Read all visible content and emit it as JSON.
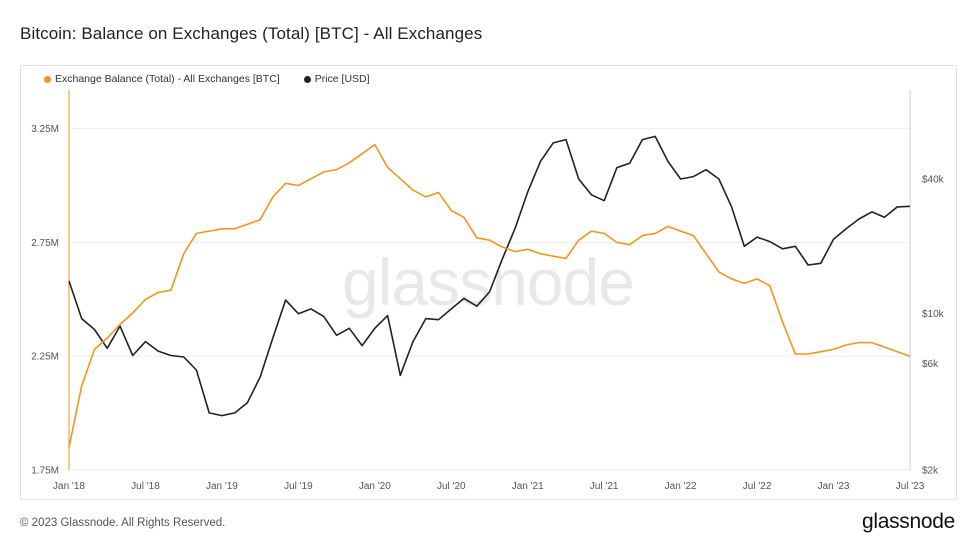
{
  "header": {
    "title": "Bitcoin: Balance on Exchanges (Total) [BTC] - All Exchanges"
  },
  "footer": {
    "copyright": "© 2023 Glassnode. All Rights Reserved.",
    "brand": "glassnode"
  },
  "watermark": "glassnode",
  "colors": {
    "balance": "#f0961c",
    "price": "#222222",
    "grid": "#eeeeee"
  },
  "chart_data": {
    "type": "line",
    "title": "Bitcoin: Balance on Exchanges (Total) [BTC] - All Exchanges",
    "legend_position": "top-left",
    "grid": true,
    "x_ticks": [
      "Jan '18",
      "Jul '18",
      "Jan '19",
      "Jul '19",
      "Jan '20",
      "Jul '20",
      "Jan '21",
      "Jul '21",
      "Jan '22",
      "Jul '22",
      "Jan '23",
      "Jul '23"
    ],
    "x_range": [
      "2018-01",
      "2023-07"
    ],
    "left_axis": {
      "ticks": [
        "1.75M",
        "2.25M",
        "2.75M",
        "3.25M"
      ],
      "values": [
        1750000,
        2250000,
        2750000,
        3250000
      ],
      "range": [
        1750000,
        3420000
      ]
    },
    "right_axis": {
      "scale": "log",
      "ticks": [
        "$2k",
        "$6k",
        "$10k",
        "$40k"
      ],
      "values": [
        2000,
        6000,
        10000,
        40000
      ],
      "range": [
        2000,
        100000
      ]
    },
    "series": [
      {
        "name": "Exchange Balance (Total) - All Exchanges [BTC]",
        "axis": "left",
        "x": [
          "2018-01",
          "2018-02",
          "2018-03",
          "2018-04",
          "2018-05",
          "2018-06",
          "2018-07",
          "2018-08",
          "2018-09",
          "2018-10",
          "2018-11",
          "2018-12",
          "2019-01",
          "2019-02",
          "2019-03",
          "2019-04",
          "2019-05",
          "2019-06",
          "2019-07",
          "2019-08",
          "2019-09",
          "2019-10",
          "2019-11",
          "2019-12",
          "2020-01",
          "2020-02",
          "2020-03",
          "2020-04",
          "2020-05",
          "2020-06",
          "2020-07",
          "2020-08",
          "2020-09",
          "2020-10",
          "2020-11",
          "2020-12",
          "2021-01",
          "2021-02",
          "2021-03",
          "2021-04",
          "2021-05",
          "2021-06",
          "2021-07",
          "2021-08",
          "2021-09",
          "2021-10",
          "2021-11",
          "2021-12",
          "2022-01",
          "2022-02",
          "2022-03",
          "2022-04",
          "2022-05",
          "2022-06",
          "2022-07",
          "2022-08",
          "2022-09",
          "2022-10",
          "2022-11",
          "2022-12",
          "2023-01",
          "2023-02",
          "2023-03",
          "2023-04",
          "2023-05",
          "2023-06",
          "2023-07"
        ],
        "values": [
          1850000,
          2120000,
          2280000,
          2330000,
          2390000,
          2440000,
          2500000,
          2530000,
          2540000,
          2700000,
          2790000,
          2800000,
          2810000,
          2810000,
          2830000,
          2850000,
          2950000,
          3010000,
          3000000,
          3030000,
          3060000,
          3070000,
          3100000,
          3140000,
          3180000,
          3080000,
          3030000,
          2980000,
          2950000,
          2970000,
          2890000,
          2860000,
          2770000,
          2760000,
          2730000,
          2710000,
          2720000,
          2700000,
          2690000,
          2680000,
          2760000,
          2800000,
          2790000,
          2750000,
          2740000,
          2780000,
          2790000,
          2820000,
          2800000,
          2780000,
          2700000,
          2620000,
          2590000,
          2570000,
          2590000,
          2560000,
          2400000,
          2260000,
          2260000,
          2270000,
          2280000,
          2300000,
          2310000,
          2310000,
          2290000,
          2270000,
          2250000
        ]
      },
      {
        "name": "Price [USD]",
        "axis": "right",
        "x": [
          "2018-01",
          "2018-02",
          "2018-03",
          "2018-04",
          "2018-05",
          "2018-06",
          "2018-07",
          "2018-08",
          "2018-09",
          "2018-10",
          "2018-11",
          "2018-12",
          "2019-01",
          "2019-02",
          "2019-03",
          "2019-04",
          "2019-05",
          "2019-06",
          "2019-07",
          "2019-08",
          "2019-09",
          "2019-10",
          "2019-11",
          "2019-12",
          "2020-01",
          "2020-02",
          "2020-03",
          "2020-04",
          "2020-05",
          "2020-06",
          "2020-07",
          "2020-08",
          "2020-09",
          "2020-10",
          "2020-11",
          "2020-12",
          "2021-01",
          "2021-02",
          "2021-03",
          "2021-04",
          "2021-05",
          "2021-06",
          "2021-07",
          "2021-08",
          "2021-09",
          "2021-10",
          "2021-11",
          "2021-12",
          "2022-01",
          "2022-02",
          "2022-03",
          "2022-04",
          "2022-05",
          "2022-06",
          "2022-07",
          "2022-08",
          "2022-09",
          "2022-10",
          "2022-11",
          "2022-12",
          "2023-01",
          "2023-02",
          "2023-03",
          "2023-04",
          "2023-05",
          "2023-06",
          "2023-07"
        ],
        "values": [
          14000,
          9500,
          8500,
          7000,
          8800,
          6500,
          7500,
          6800,
          6500,
          6400,
          5600,
          3600,
          3500,
          3600,
          4000,
          5200,
          7800,
          11500,
          10000,
          10500,
          9700,
          8000,
          8600,
          7200,
          8600,
          9800,
          5300,
          7500,
          9500,
          9400,
          10500,
          11700,
          10800,
          12500,
          17500,
          24000,
          35000,
          48000,
          58000,
          60000,
          40000,
          34000,
          32000,
          45000,
          47000,
          60000,
          62000,
          48000,
          40000,
          41000,
          44000,
          40000,
          30000,
          20000,
          22000,
          21000,
          19500,
          20000,
          16500,
          16800,
          21500,
          24000,
          26500,
          28500,
          27000,
          30000,
          30200
        ]
      }
    ]
  }
}
